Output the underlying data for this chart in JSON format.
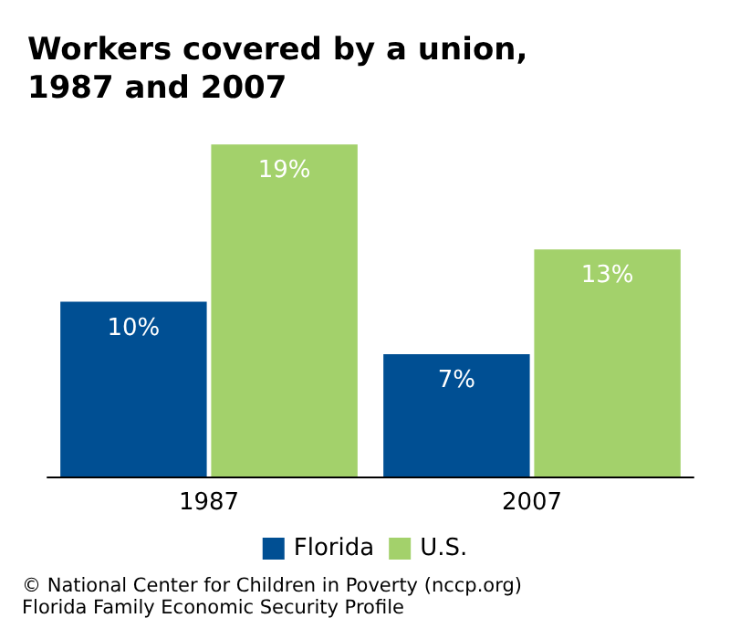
{
  "chart_data": {
    "type": "bar",
    "title": "Workers covered by a union,\n1987 and 2007",
    "categories": [
      "1987",
      "2007"
    ],
    "series": [
      {
        "name": "Florida",
        "color": "#004f93",
        "values": [
          10,
          7
        ],
        "value_labels": [
          "10%",
          "7%"
        ]
      },
      {
        "name": "U.S.",
        "color": "#a3d16b",
        "values": [
          19,
          13
        ],
        "value_labels": [
          "19%",
          "13%"
        ]
      }
    ],
    "legend": "bottom",
    "annotations": [
      "© National Center for Children in Poverty (nccp.org)",
      "Florida Family Economic Security Profile"
    ]
  }
}
